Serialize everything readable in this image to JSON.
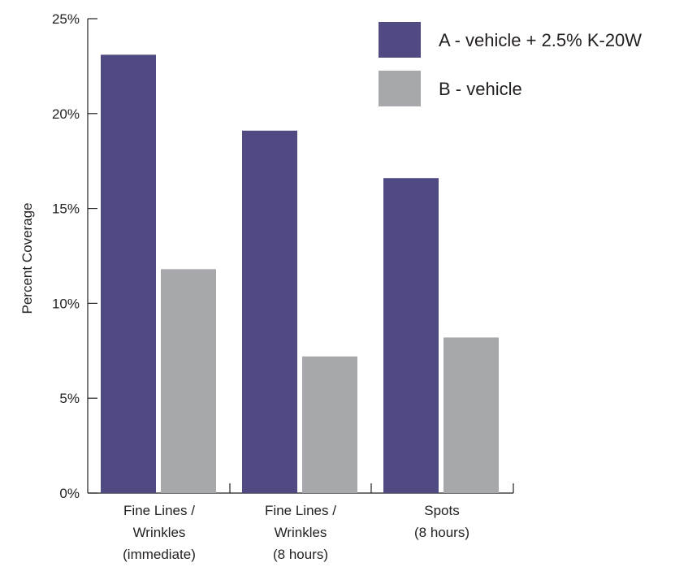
{
  "chart_data": {
    "type": "bar",
    "categories": [
      [
        "Fine Lines /",
        "Wrinkles",
        "(immediate)"
      ],
      [
        "Fine Lines /",
        "Wrinkles",
        "(8 hours)"
      ],
      [
        "Spots",
        "(8 hours)"
      ]
    ],
    "series": [
      {
        "name": "A - vehicle + 2.5% K-20W",
        "values": [
          23.1,
          19.1,
          16.6
        ],
        "color": "#4f4a82"
      },
      {
        "name": "B - vehicle",
        "values": [
          11.8,
          7.2,
          8.2
        ],
        "color": "#a7a8ab"
      }
    ],
    "ylabel": "Percent Coverage",
    "xlabel": "",
    "ylim": [
      0,
      25
    ],
    "yticks": [
      "0%",
      "5%",
      "10%",
      "15%",
      "20%",
      "25%"
    ],
    "grid": false,
    "legend": "top-right"
  }
}
